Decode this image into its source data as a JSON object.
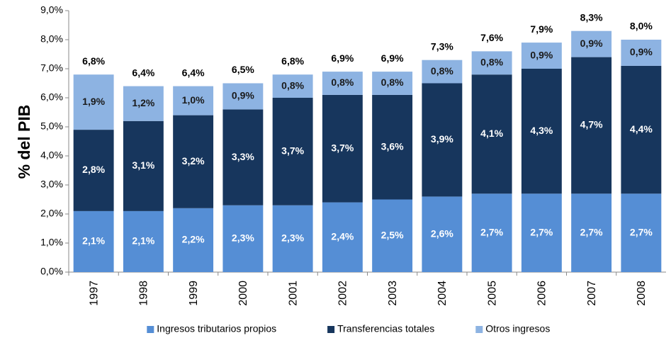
{
  "chart_data": {
    "type": "stacked_bar",
    "y_label": "% del PIB",
    "categories": [
      "1997",
      "1998",
      "1999",
      "2000",
      "2001",
      "2002",
      "2003",
      "2004",
      "2005",
      "2006",
      "2007",
      "2008"
    ],
    "series": [
      {
        "name": "Ingresos tributarios propios",
        "color": "#558ed5",
        "label_color": "#ffffff",
        "values": [
          2.1,
          2.1,
          2.2,
          2.3,
          2.3,
          2.4,
          2.5,
          2.6,
          2.7,
          2.7,
          2.7,
          2.7
        ],
        "value_labels": [
          "2,1%",
          "2,1%",
          "2,2%",
          "2,3%",
          "2,3%",
          "2,4%",
          "2,5%",
          "2,6%",
          "2,7%",
          "2,7%",
          "2,7%",
          "2,7%"
        ]
      },
      {
        "name": "Transferencias totales",
        "color": "#17365d",
        "label_color": "#ffffff",
        "values": [
          2.8,
          3.1,
          3.2,
          3.3,
          3.7,
          3.7,
          3.6,
          3.9,
          4.1,
          4.3,
          4.7,
          4.4
        ],
        "value_labels": [
          "2,8%",
          "3,1%",
          "3,2%",
          "3,3%",
          "3,7%",
          "3,7%",
          "3,6%",
          "3,9%",
          "4,1%",
          "4,3%",
          "4,7%",
          "4,4%"
        ]
      },
      {
        "name": "Otros ingresos",
        "color": "#8db3e2",
        "label_color": "#1a1a1a",
        "values": [
          1.9,
          1.2,
          1.0,
          0.9,
          0.8,
          0.8,
          0.8,
          0.8,
          0.8,
          0.9,
          0.9,
          0.9
        ],
        "value_labels": [
          "1,9%",
          "1,2%",
          "1,0%",
          "0,9%",
          "0,8%",
          "0,8%",
          "0,8%",
          "0,8%",
          "0,8%",
          "0,9%",
          "0,9%",
          "0,9%"
        ]
      }
    ],
    "totals": {
      "values": [
        6.8,
        6.4,
        6.4,
        6.5,
        6.8,
        6.9,
        6.9,
        7.3,
        7.6,
        7.9,
        8.3,
        8.0
      ],
      "value_labels": [
        "6,8%",
        "6,4%",
        "6,4%",
        "6,5%",
        "6,8%",
        "6,9%",
        "6,9%",
        "7,3%",
        "7,6%",
        "7,9%",
        "8,3%",
        "8,0%"
      ]
    },
    "ylim": [
      0,
      9
    ],
    "yticks": [
      {
        "value": 0,
        "label": "0,0%"
      },
      {
        "value": 1,
        "label": "1,0%"
      },
      {
        "value": 2,
        "label": "2,0%"
      },
      {
        "value": 3,
        "label": "3,0%"
      },
      {
        "value": 4,
        "label": "4,0%"
      },
      {
        "value": 5,
        "label": "5,0%"
      },
      {
        "value": 6,
        "label": "6,0%"
      },
      {
        "value": 7,
        "label": "7,0%"
      },
      {
        "value": 8,
        "label": "8,0%"
      },
      {
        "value": 9,
        "label": "9,0%"
      }
    ],
    "grid": false,
    "legend": "bottom"
  }
}
